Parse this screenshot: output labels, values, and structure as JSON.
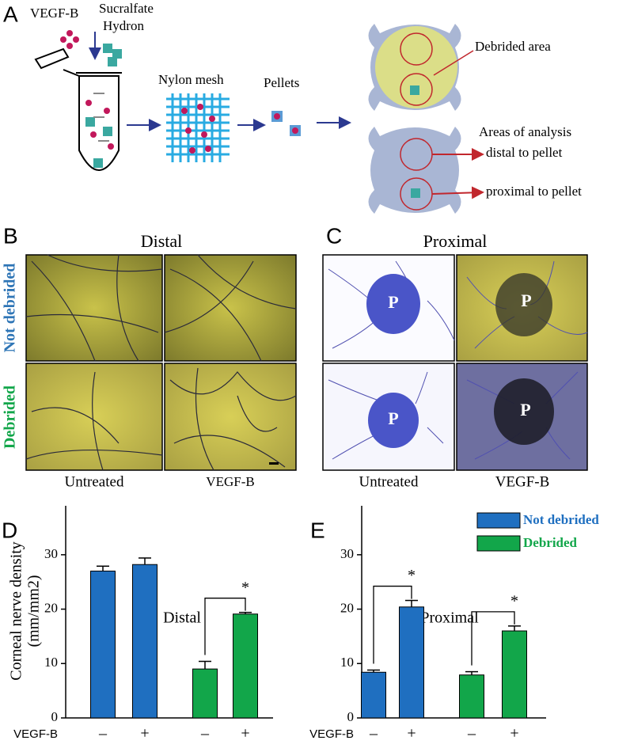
{
  "panel_a": {
    "label": "A",
    "vegf_b": "VEGF-B",
    "sucralfate": "Sucralfate",
    "hydron": "Hydron",
    "nylon_mesh": "Nylon mesh",
    "pellets": "Pellets",
    "debrided_area": "Debrided area",
    "areas_of_analysis": "Areas of analysis",
    "distal": "distal to pellet",
    "proximal": "proximal to pellet"
  },
  "panel_b": {
    "label": "B",
    "title": "Distal",
    "rows": [
      "Not debrided",
      "Debrided"
    ],
    "columns": [
      "Untreated",
      "VEGF-B"
    ]
  },
  "panel_c": {
    "label": "C",
    "title": "Proximal",
    "columns": [
      "Untreated",
      "VEGF-B"
    ],
    "pellet_labels": [
      "P",
      "P",
      "P",
      "P"
    ]
  },
  "chart_data": [
    {
      "type": "bar",
      "panel_label": "D",
      "title": "Distal",
      "ylabel": [
        "Corneal nerve density",
        "(mm/mm2)"
      ],
      "xlabel": "VEGF-B",
      "categories": [
        "–",
        "+",
        "–",
        "+"
      ],
      "series": [
        {
          "name": "Not debrided",
          "color": "#1f6fc0",
          "values": [
            27,
            28.2,
            null,
            null
          ],
          "errors": [
            0.9,
            1.2,
            null,
            null
          ]
        },
        {
          "name": "Debrided",
          "color": "#12a64a",
          "values": [
            null,
            null,
            9,
            19.1
          ],
          "errors": [
            null,
            null,
            1.4,
            0.3
          ]
        }
      ],
      "significance": [
        {
          "label": "*",
          "categories": [
            2,
            3
          ]
        }
      ],
      "ylim": [
        0,
        39
      ],
      "yticks": [
        0,
        10,
        20,
        30
      ],
      "legend": false
    },
    {
      "type": "bar",
      "panel_label": "E",
      "title": "Proximal",
      "xlabel": "VEGF-B",
      "categories": [
        "–",
        "+",
        "–",
        "+"
      ],
      "series": [
        {
          "name": "Not debrided",
          "color": "#1f6fc0",
          "values": [
            8.4,
            20.4,
            null,
            null
          ],
          "errors": [
            0.4,
            1.2,
            null,
            null
          ]
        },
        {
          "name": "Debrided",
          "color": "#12a64a",
          "values": [
            null,
            null,
            7.9,
            16
          ],
          "errors": [
            null,
            null,
            0.6,
            0.9
          ]
        }
      ],
      "significance": [
        {
          "label": "*",
          "categories": [
            0,
            1
          ]
        },
        {
          "label": "*",
          "categories": [
            2,
            3
          ]
        }
      ],
      "ylim": [
        0,
        39
      ],
      "yticks": [
        0,
        10,
        20,
        30
      ],
      "legend": "top-right"
    }
  ]
}
